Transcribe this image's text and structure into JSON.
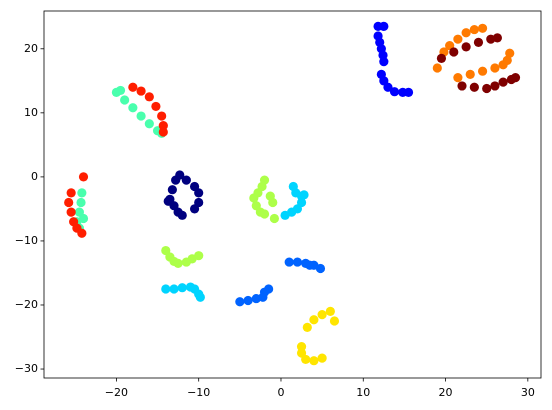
{
  "chart_data": {
    "type": "scatter",
    "xlim": [
      -28.8,
      31.6
    ],
    "ylim": [
      -31.4,
      25.9
    ],
    "xticks": [
      {
        "value": -20,
        "label": "−20"
      },
      {
        "value": -10,
        "label": "−10"
      },
      0,
      10,
      20,
      30
    ],
    "yticks": [
      {
        "value": -30,
        "label": "−30"
      },
      {
        "value": -20,
        "label": "−20"
      },
      {
        "value": -10,
        "label": "−10"
      },
      0,
      10,
      20
    ],
    "grid": false,
    "series": [
      {
        "color": "#00007f",
        "x": [
          -13.5,
          -13.2,
          -12.8,
          -12.3,
          -13,
          -12.5,
          -12,
          -11.5,
          -10.5,
          -10,
          -10,
          -10.5,
          -13.7
        ],
        "values": [
          -3.5,
          -2,
          -0.5,
          0.3,
          -4.5,
          -5.5,
          -6,
          -0.5,
          -1.5,
          -2.5,
          -4,
          -5,
          -3.8
        ]
      },
      {
        "color": "#0000ff",
        "x": [
          11.8,
          12.5,
          11.8,
          12,
          12.2,
          12.4,
          12.5,
          12.2,
          12.5,
          13,
          13.8,
          14.8,
          15.5
        ],
        "values": [
          23.5,
          23.5,
          22,
          21,
          20,
          19,
          18,
          16,
          15,
          14,
          13.3,
          13.2,
          13.2
        ]
      },
      {
        "color": "#0063ff",
        "x": [
          1,
          2,
          3,
          3.5,
          4,
          4.8,
          -5,
          -4,
          -3,
          -2.2,
          -2,
          -1.5
        ],
        "values": [
          -13.3,
          -13.3,
          -13.5,
          -13.8,
          -13.8,
          -14.3,
          -19.5,
          -19.3,
          -19,
          -18.8,
          -18,
          -17.5
        ]
      },
      {
        "color": "#00d4ff",
        "x": [
          1.5,
          1.8,
          2.5,
          2.5,
          2,
          1.3,
          0.5,
          2.8,
          -14,
          -13,
          -12,
          -11,
          -10.5,
          -10,
          -9.8
        ],
        "values": [
          -1.5,
          -2.5,
          -3,
          -4,
          -5,
          -5.5,
          -6,
          -2.8,
          -17.5,
          -17.5,
          -17.3,
          -17.2,
          -17.5,
          -18.3,
          -18.8
        ]
      },
      {
        "color": "#49ffad",
        "x": [
          -20,
          -19,
          -18,
          -17,
          -16,
          -15,
          -14.5,
          -19.5,
          -24.2,
          -24.3,
          -24.5,
          -24.8,
          -24,
          -24.5
        ],
        "values": [
          13.2,
          12,
          10.8,
          9.5,
          8.3,
          7.2,
          6.8,
          13.5,
          -2.5,
          -4,
          -5.5,
          -7,
          -6.5,
          -8
        ]
      },
      {
        "color": "#adff49",
        "x": [
          -2,
          -2.3,
          -2.8,
          -3.3,
          -3,
          -2.5,
          -2,
          -1,
          -1.3,
          -0.8,
          -14,
          -13.5,
          -13,
          -12.5,
          -11.5,
          -10.8,
          -10
        ],
        "values": [
          -0.5,
          -1.5,
          -2.5,
          -3.3,
          -4.5,
          -5.5,
          -5.8,
          -4,
          -3,
          -6.5,
          -11.5,
          -12.5,
          -13.2,
          -13.5,
          -13.3,
          -12.8,
          -12.3
        ]
      },
      {
        "color": "#ffe500",
        "x": [
          6,
          5,
          4,
          3.2,
          6.5,
          2.5,
          2.5,
          3,
          4,
          5
        ],
        "values": [
          -21,
          -21.5,
          -22.3,
          -23.5,
          -22.5,
          -26.5,
          -27.5,
          -28.5,
          -28.7,
          -28.3
        ]
      },
      {
        "color": "#ff7a00",
        "x": [
          19,
          19.8,
          20.5,
          21.5,
          22.5,
          23.5,
          24.5,
          21.5,
          23,
          24.5,
          26,
          27,
          27.5,
          27.8
        ],
        "values": [
          17,
          19.5,
          20.5,
          21.5,
          22.5,
          23,
          23.2,
          15.5,
          16,
          16.5,
          17,
          17.5,
          18.2,
          19.3
        ]
      },
      {
        "color": "#ff1e00",
        "x": [
          -18,
          -17,
          -16,
          -15.2,
          -14.5,
          -14.3,
          -14.3,
          -24,
          -25.5,
          -25.8,
          -25.5,
          -25.2,
          -24.8,
          -24.2
        ],
        "values": [
          14,
          13.4,
          12.5,
          11,
          9.5,
          8,
          7,
          0,
          -2.5,
          -4,
          -5.5,
          -7,
          -8,
          -8.8
        ]
      },
      {
        "color": "#7f0000",
        "x": [
          19.5,
          21,
          22.5,
          24,
          25.5,
          26.3,
          22,
          23.5,
          25,
          26,
          27,
          28,
          28.5
        ],
        "values": [
          18.5,
          19.5,
          20.3,
          21,
          21.5,
          21.7,
          14.2,
          14,
          13.8,
          14.2,
          14.8,
          15.2,
          15.5
        ]
      }
    ]
  }
}
